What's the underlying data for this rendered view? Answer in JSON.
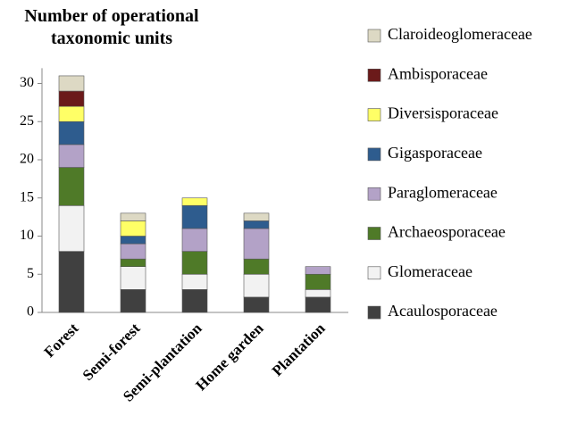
{
  "chart_data": {
    "type": "stacked_bar",
    "title": "Number of operational taxonomic units",
    "categories": [
      "Forest",
      "Semi-forest",
      "Semi-plantation",
      "Home garden",
      "Plantation"
    ],
    "series": [
      {
        "name": "Acaulosporaceae",
        "color": "#404040",
        "values": [
          8,
          3,
          3,
          2,
          2
        ]
      },
      {
        "name": "Glomeraceae",
        "color": "#f2f2f2",
        "values": [
          6,
          3,
          2,
          3,
          1
        ]
      },
      {
        "name": "Archaeosporaceae",
        "color": "#4f7a28",
        "values": [
          5,
          1,
          3,
          2,
          2
        ]
      },
      {
        "name": "Paraglomeraceae",
        "color": "#b3a2c7",
        "values": [
          3,
          2,
          3,
          4,
          1
        ]
      },
      {
        "name": "Gigasporaceae",
        "color": "#2e5c8e",
        "values": [
          3,
          1,
          3,
          1,
          0
        ]
      },
      {
        "name": "Diversisporaceae",
        "color": "#ffff66",
        "values": [
          2,
          2,
          1,
          0,
          0
        ]
      },
      {
        "name": "Ambisporaceae",
        "color": "#6b1a1a",
        "values": [
          2,
          0,
          0,
          0,
          0
        ]
      },
      {
        "name": "Claroideoglomeraceae",
        "color": "#ddd9c4",
        "values": [
          2,
          1,
          0,
          1,
          0
        ]
      }
    ],
    "ylim": [
      0,
      32
    ],
    "yticks": [
      0,
      5,
      10,
      15,
      20,
      25,
      30
    ],
    "legend": "right"
  }
}
